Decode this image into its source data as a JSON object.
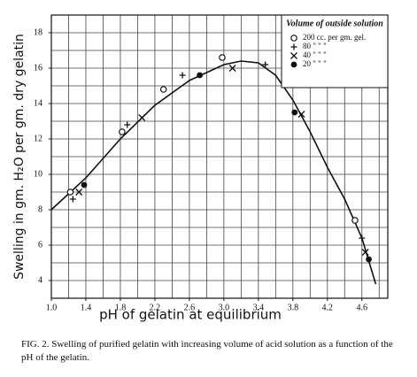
{
  "chart_data": {
    "type": "scatter",
    "y_label": "Swelling in gm. H₂O per gm. dry gelatin",
    "x_label": "pH of gelatin at equilibrium",
    "caption": "FIG. 2. Swelling of purified gelatin with increasing volume of acid solution as a function of the pH of the gelatin.",
    "legend_title": "Volume of outside solution",
    "legend": "top-right",
    "xlim": [
      1.0,
      4.9
    ],
    "ylim": [
      3,
      19
    ],
    "xticks": [
      {
        "value": 1.0,
        "label": "1.0"
      },
      1.4,
      1.8,
      2.2,
      2.6,
      {
        "value": 3.0,
        "label": "3.0"
      },
      3.4,
      3.8,
      4.2,
      4.6
    ],
    "yticks": [
      4,
      6,
      8,
      10,
      12,
      14,
      16,
      18
    ],
    "xgrid": [
      1.2,
      1.4,
      1.6,
      1.8,
      2.0,
      2.2,
      2.4,
      2.6,
      2.8,
      3.0,
      3.2,
      3.4,
      3.6,
      3.8,
      4.0,
      4.2,
      4.4,
      4.6,
      4.8
    ],
    "ygrid": [
      4,
      5,
      6,
      7,
      8,
      9,
      10,
      11,
      12,
      13,
      14,
      15,
      16,
      17,
      18
    ],
    "series": [
      {
        "name": "200 cc. per gm. gel.",
        "marker": "open-circle",
        "color": "#111",
        "x": [
          1.22,
          1.82,
          2.3,
          2.98,
          4.52
        ],
        "values": [
          9.0,
          12.4,
          14.8,
          16.6,
          7.4
        ]
      },
      {
        "name": "80 \" \" \"",
        "marker": "plus",
        "color": "#111",
        "x": [
          1.25,
          1.88,
          2.52,
          3.48,
          4.6
        ],
        "values": [
          8.6,
          12.8,
          15.6,
          16.2,
          6.4
        ]
      },
      {
        "name": "40 \" \" \"",
        "marker": "cross",
        "color": "#111",
        "x": [
          1.32,
          2.05,
          3.1,
          3.9,
          4.64
        ],
        "values": [
          9.0,
          13.2,
          16.0,
          13.4,
          5.6
        ]
      },
      {
        "name": "20 \" \" \"",
        "marker": "filled-circle",
        "color": "#111",
        "x": [
          1.38,
          2.72,
          3.82,
          4.68
        ],
        "values": [
          9.4,
          15.6,
          13.5,
          5.2
        ]
      }
    ],
    "curve": {
      "x": [
        1.0,
        1.4,
        1.8,
        2.2,
        2.6,
        3.0,
        3.2,
        3.4,
        3.6,
        3.8,
        4.0,
        4.2,
        4.4,
        4.6,
        4.76
      ],
      "values": [
        8.0,
        9.8,
        12.0,
        13.9,
        15.3,
        16.2,
        16.4,
        16.3,
        15.6,
        14.2,
        12.4,
        10.4,
        8.6,
        6.4,
        3.8
      ]
    }
  }
}
